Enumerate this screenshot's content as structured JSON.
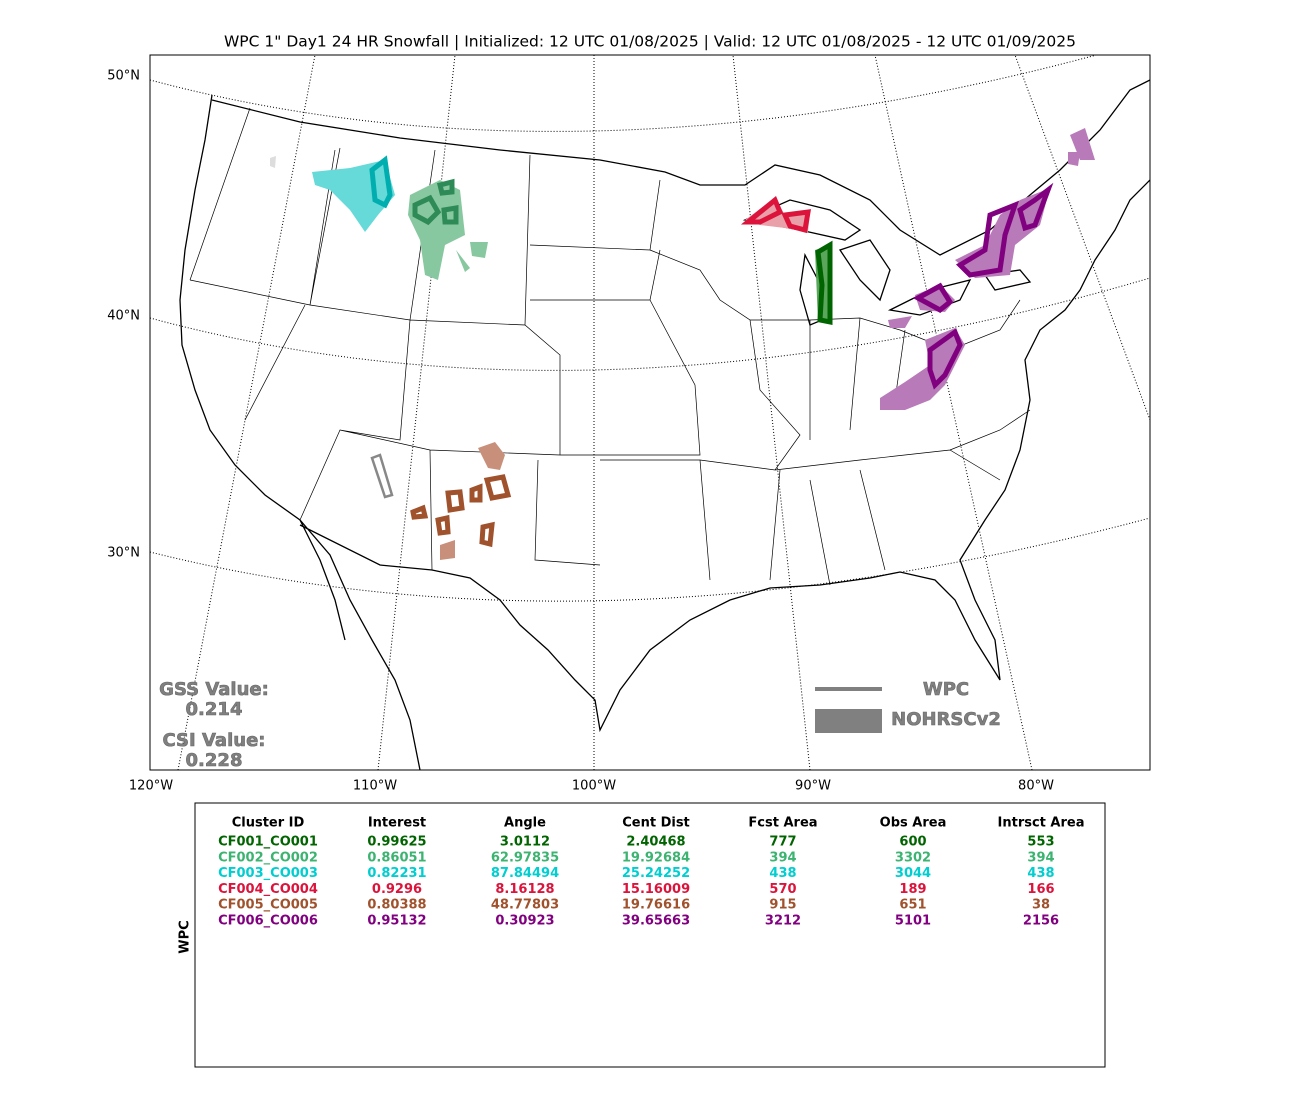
{
  "title": "WPC 1\" Day1 24 HR Snowfall | Initialized: 12 UTC 01/08/2025 | Valid: 12 UTC 01/08/2025 - 12 UTC 01/09/2025",
  "map": {
    "lat_labels": [
      "50°N",
      "40°N",
      "30°N"
    ],
    "lon_labels": [
      "120°W",
      "110°W",
      "100°W",
      "90°W",
      "80°W"
    ],
    "scores": [
      {
        "label": "GSS Value:",
        "value": 0.214
      },
      {
        "label": "CSI Value:",
        "value": 0.228
      }
    ],
    "legend": [
      "WPC",
      "NOHRSCv2"
    ]
  },
  "table": {
    "side_label": "WPC",
    "columns": [
      "Cluster ID",
      "Interest",
      "Angle",
      "Cent Dist",
      "Fcst Area",
      "Obs Area",
      "Intrsct Area"
    ],
    "rows": [
      [
        "CF001_CO001",
        0.99625,
        3.0112,
        2.40468,
        777,
        600,
        553
      ],
      [
        "CF002_CO002",
        0.86051,
        62.97835,
        19.92684,
        394,
        3302,
        394
      ],
      [
        "CF003_CO003",
        0.82231,
        87.84494,
        25.24252,
        438,
        3044,
        438
      ],
      [
        "CF004_CO004",
        0.9296,
        8.16128,
        15.16009,
        570,
        189,
        166
      ],
      [
        "CF005_CO005",
        0.80388,
        48.77803,
        19.76616,
        915,
        651,
        38
      ],
      [
        "CF006_CO006",
        0.95132,
        0.30923,
        39.65663,
        3212,
        5101,
        2156
      ]
    ],
    "row_colors": [
      "#006400",
      "#3cb371",
      "#00ced1",
      "#dc143c",
      "#a0522d",
      "#800080"
    ]
  }
}
